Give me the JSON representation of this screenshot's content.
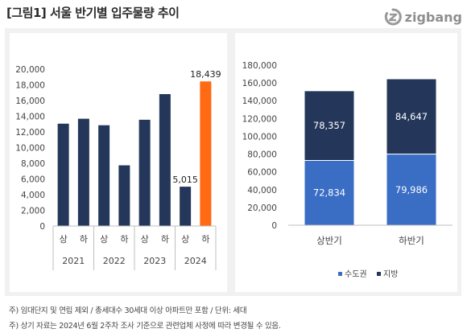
{
  "header": {
    "title": "[그림1] 서울 반기별 입주물량 추이",
    "brand": "zigbang",
    "brand_icon": "zigbang-logo-icon"
  },
  "chart_data": [
    {
      "type": "bar",
      "title": "",
      "xlabel": "",
      "ylabel": "",
      "ylim": [
        0,
        20000
      ],
      "yticks": [
        "0",
        "2,000",
        "4,000",
        "6,000",
        "8,000",
        "10,000",
        "12,000",
        "14,000",
        "16,000",
        "18,000",
        "20,000"
      ],
      "categories": [
        "상",
        "하",
        "상",
        "하",
        "상",
        "하",
        "상",
        "하"
      ],
      "groups": [
        "2021",
        "2022",
        "2023",
        "2024"
      ],
      "values": [
        13050,
        13680,
        12850,
        7740,
        13550,
        16820,
        5015,
        18439
      ],
      "data_labels": {
        "6": "5,015",
        "7": "18,439"
      },
      "colors": {
        "default": "#24375a",
        "highlight": "#ff6a13"
      },
      "highlight_index": 7,
      "grid": false
    },
    {
      "type": "bar",
      "stacked": true,
      "title": "",
      "ylim": [
        0,
        180000
      ],
      "yticks": [
        "0",
        "20,000",
        "40,000",
        "60,000",
        "80,000",
        "100,000",
        "120,000",
        "140,000",
        "160,000",
        "180,000"
      ],
      "categories": [
        "상반기",
        "하반기"
      ],
      "series": [
        {
          "name": "수도권",
          "values": [
            72834,
            79986
          ],
          "labels": [
            "72,834",
            "79,986"
          ],
          "color": "#3a6dc4"
        },
        {
          "name": "지방",
          "values": [
            78357,
            84647
          ],
          "labels": [
            "78,357",
            "84,647"
          ],
          "color": "#24375a"
        }
      ],
      "legend": "bottom",
      "grid": false
    }
  ],
  "footnotes": [
    "주) 임대단지 및 연립 제외 / 총세대수 30세대 이상 아파트만 포함 / 단위: 세대",
    "주) 상기 자료는 2024년 6월 2주차 조사 기준으로 관련업체 사정에 따라 변경될 수 있음."
  ]
}
